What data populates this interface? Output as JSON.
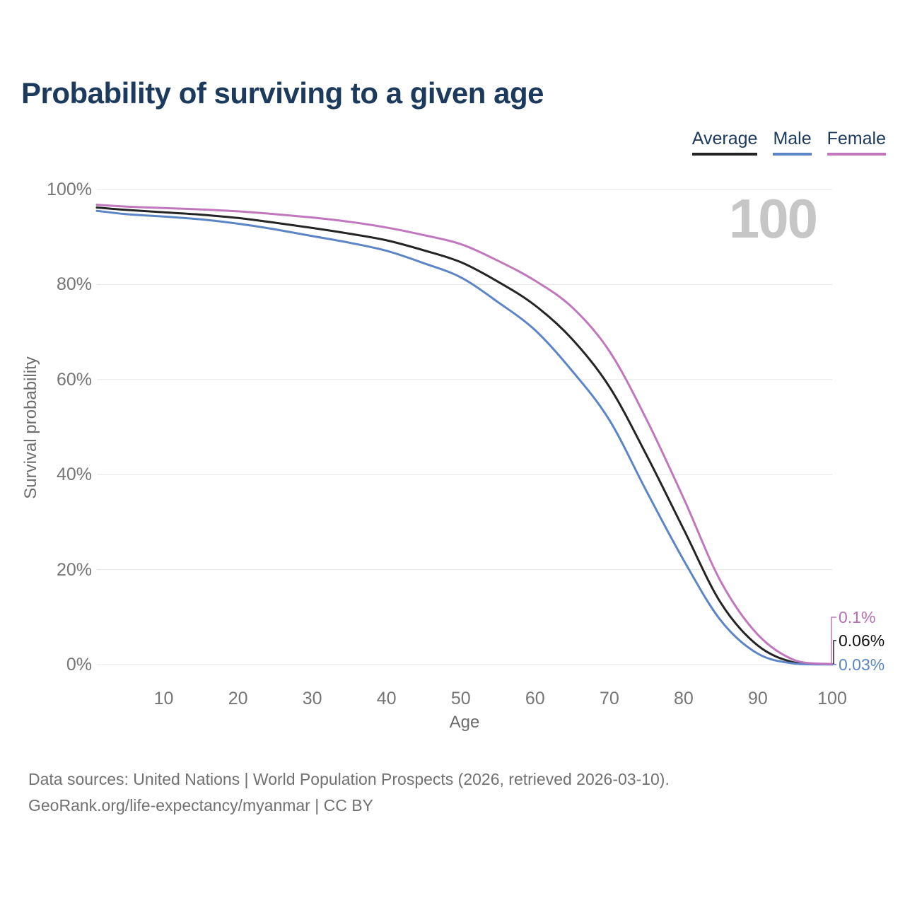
{
  "title": "Probability of surviving to a given age",
  "legend": {
    "items": [
      {
        "label": "Average",
        "color": "#242424"
      },
      {
        "label": "Male",
        "color": "#5b85c4"
      },
      {
        "label": "Female",
        "color": "#c077bd"
      }
    ]
  },
  "watermark": "100",
  "chart_data": {
    "type": "line",
    "title": "Probability of surviving to a given age",
    "xlabel": "Age",
    "ylabel": "Survival probability",
    "xlim": [
      1,
      100
    ],
    "ylim": [
      0,
      100
    ],
    "x_ticks": [
      10,
      20,
      30,
      40,
      50,
      60,
      70,
      80,
      90,
      100
    ],
    "y_ticks": [
      "0%",
      "20%",
      "40%",
      "60%",
      "80%",
      "100%"
    ],
    "grid": "horizontal",
    "legend_position": "top-right",
    "grid_color": "#e6e6e6",
    "x": [
      1,
      5,
      10,
      15,
      20,
      25,
      30,
      35,
      40,
      45,
      50,
      55,
      60,
      65,
      70,
      75,
      80,
      85,
      90,
      95,
      100
    ],
    "series": [
      {
        "name": "Average",
        "color": "#242424",
        "end_label": "0.06%",
        "end_label_color": "#111111",
        "values": [
          96.2,
          95.7,
          95.2,
          94.7,
          94.0,
          93.0,
          91.9,
          90.7,
          89.3,
          87.2,
          84.7,
          80.6,
          75.6,
          68.5,
          58.5,
          44.1,
          28.5,
          13.0,
          4.0,
          0.4,
          0.06
        ]
      },
      {
        "name": "Male",
        "color": "#5b85c4",
        "end_label": "0.03%",
        "end_label_color": "#5b85c4",
        "values": [
          95.5,
          94.8,
          94.3,
          93.7,
          92.8,
          91.6,
          90.2,
          88.8,
          87.1,
          84.5,
          81.5,
          76.3,
          70.4,
          61.8,
          51.5,
          36.5,
          22.0,
          9.3,
          2.3,
          0.2,
          0.03
        ]
      },
      {
        "name": "Female",
        "color": "#c077bd",
        "end_label": "0.1%",
        "end_label_color": "#b76fb3",
        "values": [
          96.8,
          96.4,
          96.1,
          95.8,
          95.4,
          94.8,
          94.1,
          93.2,
          92.0,
          90.4,
          88.5,
          85.0,
          80.8,
          75.2,
          66.0,
          51.6,
          35.0,
          17.5,
          6.3,
          0.9,
          0.1
        ]
      }
    ]
  },
  "footer": {
    "line1": "Data sources: United Nations | World Population Prospects (2026, retrieved 2026-03-10).",
    "line2": "GeoRank.org/life-expectancy/myanmar | CC BY"
  }
}
